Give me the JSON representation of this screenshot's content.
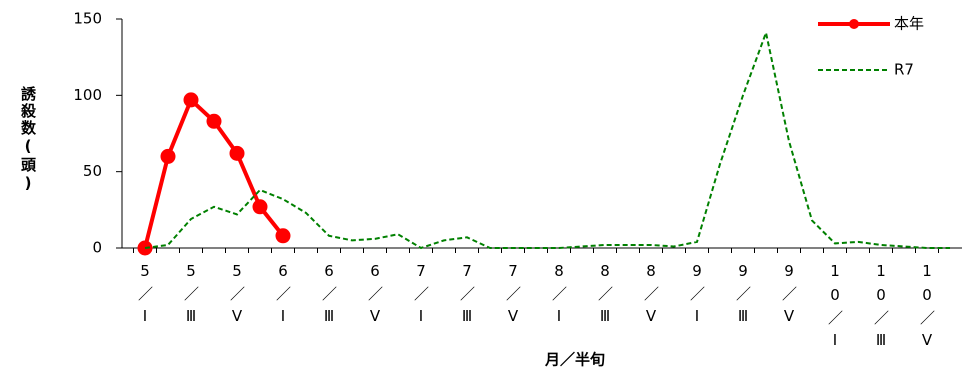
{
  "chart_data": {
    "type": "line",
    "y_label": "誘殺数(頭)",
    "x_label": "月／半旬",
    "categories": [
      "5／Ⅰ",
      null,
      "5／Ⅲ",
      null,
      "5／Ⅴ",
      null,
      "6／Ⅰ",
      null,
      "6／Ⅲ",
      null,
      "6／Ⅴ",
      null,
      "7／Ⅰ",
      null,
      "7／Ⅲ",
      null,
      "7／Ⅴ",
      null,
      "8／Ⅰ",
      null,
      "8／Ⅲ",
      null,
      "8／Ⅴ",
      null,
      "9／Ⅰ",
      null,
      "9／Ⅲ",
      null,
      "9／Ⅴ",
      null,
      "10／Ⅰ",
      null,
      "10／Ⅲ",
      null,
      "10／Ⅴ",
      null
    ],
    "series": [
      {
        "name": "本年",
        "color": "#ff0000",
        "style": "solid",
        "markers": true,
        "values": [
          0,
          60,
          97,
          83,
          62,
          27,
          8,
          null,
          null,
          null,
          null,
          null,
          null,
          null,
          null,
          null,
          null,
          null,
          null,
          null,
          null,
          null,
          null,
          null,
          null,
          null,
          null,
          null,
          null,
          null,
          null,
          null,
          null,
          null,
          null,
          null
        ]
      },
      {
        "name": "R7",
        "color": "#008000",
        "style": "dashed",
        "markers": false,
        "values": [
          0,
          2,
          19,
          27,
          22,
          38,
          32,
          23,
          8,
          5,
          6,
          9,
          0,
          5,
          7,
          0,
          0,
          0,
          0,
          1,
          2,
          2,
          2,
          1,
          4,
          55,
          100,
          141,
          70,
          18,
          3,
          4,
          2,
          1,
          0,
          0
        ]
      }
    ],
    "ylim": [
      0,
      150
    ],
    "yticks": [
      0,
      50,
      100,
      150
    ],
    "legend": "top-right"
  }
}
